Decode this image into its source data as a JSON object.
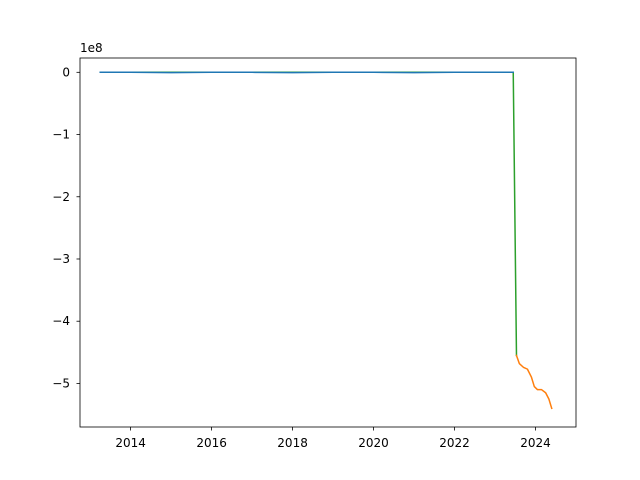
{
  "chart_data": {
    "type": "line",
    "title": "",
    "xlabel": "",
    "ylabel": "",
    "y_offset_label": "1e8",
    "x_type": "year",
    "xlim": [
      2012.75,
      2025.0
    ],
    "ylim": [
      -5.7,
      0.23
    ],
    "x_ticks": [
      2014,
      2016,
      2018,
      2020,
      2022,
      2024
    ],
    "x_tick_labels": [
      "2014",
      "2016",
      "2018",
      "2020",
      "2022",
      "2024"
    ],
    "y_ticks": [
      0,
      -1,
      -2,
      -3,
      -4,
      -5
    ],
    "y_tick_labels": [
      "0",
      "−1",
      "−2",
      "−3",
      "−4",
      "−5"
    ],
    "grid": false,
    "legend": "none",
    "series": [
      {
        "color": "#2ca02c",
        "x": [
          2013.25,
          2014.0,
          2016.0,
          2018.0,
          2020.0,
          2022.0,
          2023.45,
          2023.53
        ],
        "y": [
          0.0,
          0.0,
          0.0,
          0.0,
          0.0,
          0.0,
          0.0,
          -4.55
        ]
      },
      {
        "color": "#1f77b4",
        "x": [
          2013.25,
          2014.0,
          2015.0,
          2016.0,
          2017.0,
          2018.0,
          2019.0,
          2020.0,
          2021.0,
          2022.0,
          2023.0,
          2023.45
        ],
        "y": [
          0.0,
          0.0,
          -0.005,
          0.0,
          0.0,
          -0.005,
          0.0,
          0.0,
          -0.005,
          0.0,
          0.0,
          0.0
        ]
      },
      {
        "color": "#ff7f0e",
        "x": [
          2023.53,
          2023.6,
          2023.7,
          2023.8,
          2023.9,
          2023.97,
          2024.05,
          2024.15,
          2024.25,
          2024.33,
          2024.4
        ],
        "y": [
          -4.55,
          -4.68,
          -4.74,
          -4.77,
          -4.9,
          -5.05,
          -5.1,
          -5.1,
          -5.15,
          -5.25,
          -5.4
        ]
      }
    ]
  }
}
